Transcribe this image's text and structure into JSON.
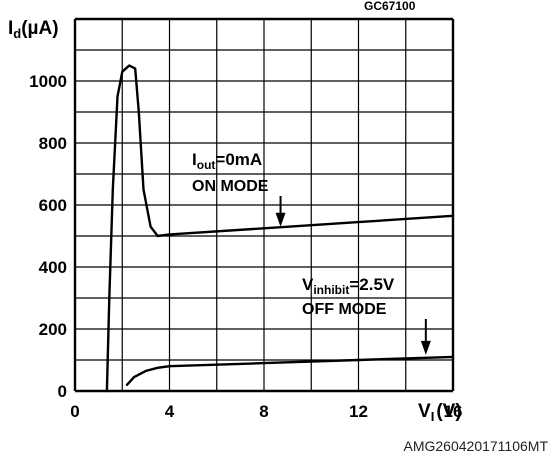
{
  "figure_code": "GC67100",
  "reference": "AMG260420171106MT",
  "chart_data": {
    "type": "line",
    "ylabel_main": "I",
    "ylabel_sub": "d",
    "ylabel_unit": "(µA)",
    "xlabel_main": "V",
    "xlabel_sub": "I",
    "xlabel_unit": "(V)",
    "xlim": [
      0,
      16
    ],
    "ylim": [
      0,
      1200
    ],
    "x_ticks": [
      0,
      4,
      8,
      12,
      16
    ],
    "y_ticks": [
      0,
      200,
      400,
      600,
      800,
      1000
    ],
    "grid": true,
    "series": [
      {
        "id": "on",
        "points": [
          [
            1.35,
            0
          ],
          [
            1.45,
            300
          ],
          [
            1.6,
            650
          ],
          [
            1.8,
            950
          ],
          [
            2.0,
            1030
          ],
          [
            2.3,
            1050
          ],
          [
            2.55,
            1040
          ],
          [
            2.7,
            900
          ],
          [
            2.9,
            650
          ],
          [
            3.2,
            530
          ],
          [
            3.5,
            500
          ],
          [
            4,
            505
          ],
          [
            8,
            525
          ],
          [
            12,
            545
          ],
          [
            16,
            565
          ]
        ],
        "annotation_line1_main": "I",
        "annotation_line1_sub": "out",
        "annotation_line1_rest": "=0mA",
        "annotation_line2": "ON MODE",
        "arrow_to": [
          8.7,
          520
        ]
      },
      {
        "id": "off",
        "points": [
          [
            2.2,
            20
          ],
          [
            2.5,
            45
          ],
          [
            3,
            65
          ],
          [
            3.5,
            75
          ],
          [
            4,
            80
          ],
          [
            8,
            90
          ],
          [
            12,
            100
          ],
          [
            16,
            110
          ]
        ],
        "annotation_line1_main": "V",
        "annotation_line1_sub": "inhibit",
        "annotation_line1_rest": "=2.5V",
        "annotation_line2": "OFF MODE",
        "arrow_to": [
          14.85,
          107
        ]
      }
    ]
  }
}
